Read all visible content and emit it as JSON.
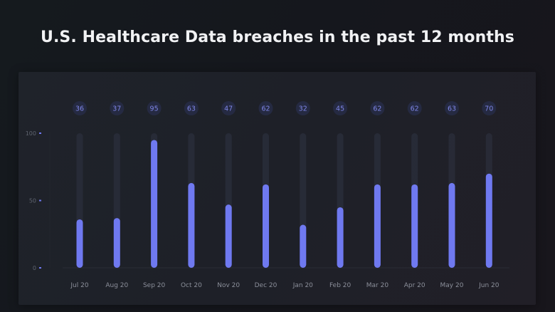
{
  "chart_data": {
    "type": "bar",
    "title": "U.S. Healthcare Data breaches in the past 12 months",
    "xlabel": "",
    "ylabel": "",
    "ylim": [
      0,
      100
    ],
    "yticks": [
      0,
      50,
      100
    ],
    "ytick_labels": [
      "0",
      "50",
      "100"
    ],
    "grid": false,
    "legend": null,
    "categories": [
      "Jul 20",
      "Aug 20",
      "Sep 20",
      "Oct 20",
      "Nov 20",
      "Dec 20",
      "Jan 20",
      "Feb 20",
      "Mar 20",
      "Apr 20",
      "May 20",
      "Jun 20"
    ],
    "values": [
      36,
      37,
      95,
      63,
      47,
      62,
      32,
      45,
      62,
      62,
      63,
      70
    ],
    "data_labels": [
      "36",
      "37",
      "95",
      "63",
      "47",
      "62",
      "32",
      "45",
      "62",
      "62",
      "63",
      "70"
    ]
  },
  "colors": {
    "bar": "#6f79f0",
    "track": "#2b2f3c",
    "badge_bg": "#262b45",
    "badge_text": "#7f86e8",
    "tick_marker": "#6f79f0"
  }
}
